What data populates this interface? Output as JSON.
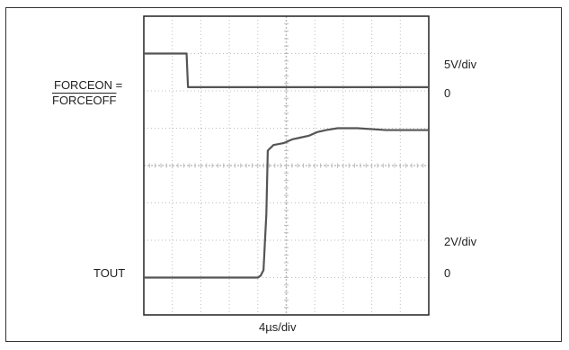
{
  "colors": {
    "frame": "#333333",
    "screen_border": "#222222",
    "grid": "#bdbdbd",
    "trace": "#555555",
    "text": "#222222"
  },
  "chart_data": {
    "type": "line",
    "grid": true,
    "x_divisions": 10,
    "y_divisions": 8,
    "x_scale_label": "4µs/div",
    "channels": [
      {
        "label_line1": "FORCEON =",
        "label_line2": "FORCEOFF",
        "scale_label": "5V/div",
        "zero_label": "0",
        "zero_div": 1,
        "points": [
          [
            0,
            1.0
          ],
          [
            1.5,
            1.0
          ],
          [
            1.55,
            1.9
          ],
          [
            10,
            1.9
          ]
        ]
      },
      {
        "label_line1": "TOUT",
        "scale_label": "2V/div",
        "zero_label": "0",
        "zero_div": 7,
        "points": [
          [
            0,
            7.0
          ],
          [
            4.0,
            7.0
          ],
          [
            4.1,
            6.95
          ],
          [
            4.2,
            6.8
          ],
          [
            4.3,
            5.3
          ],
          [
            4.35,
            3.6
          ],
          [
            4.55,
            3.45
          ],
          [
            4.9,
            3.4
          ],
          [
            5.2,
            3.3
          ],
          [
            5.5,
            3.25
          ],
          [
            5.8,
            3.2
          ],
          [
            6.1,
            3.1
          ],
          [
            6.4,
            3.05
          ],
          [
            6.8,
            3.0
          ],
          [
            7.5,
            3.0
          ],
          [
            8.5,
            3.05
          ],
          [
            10,
            3.05
          ]
        ]
      }
    ]
  }
}
